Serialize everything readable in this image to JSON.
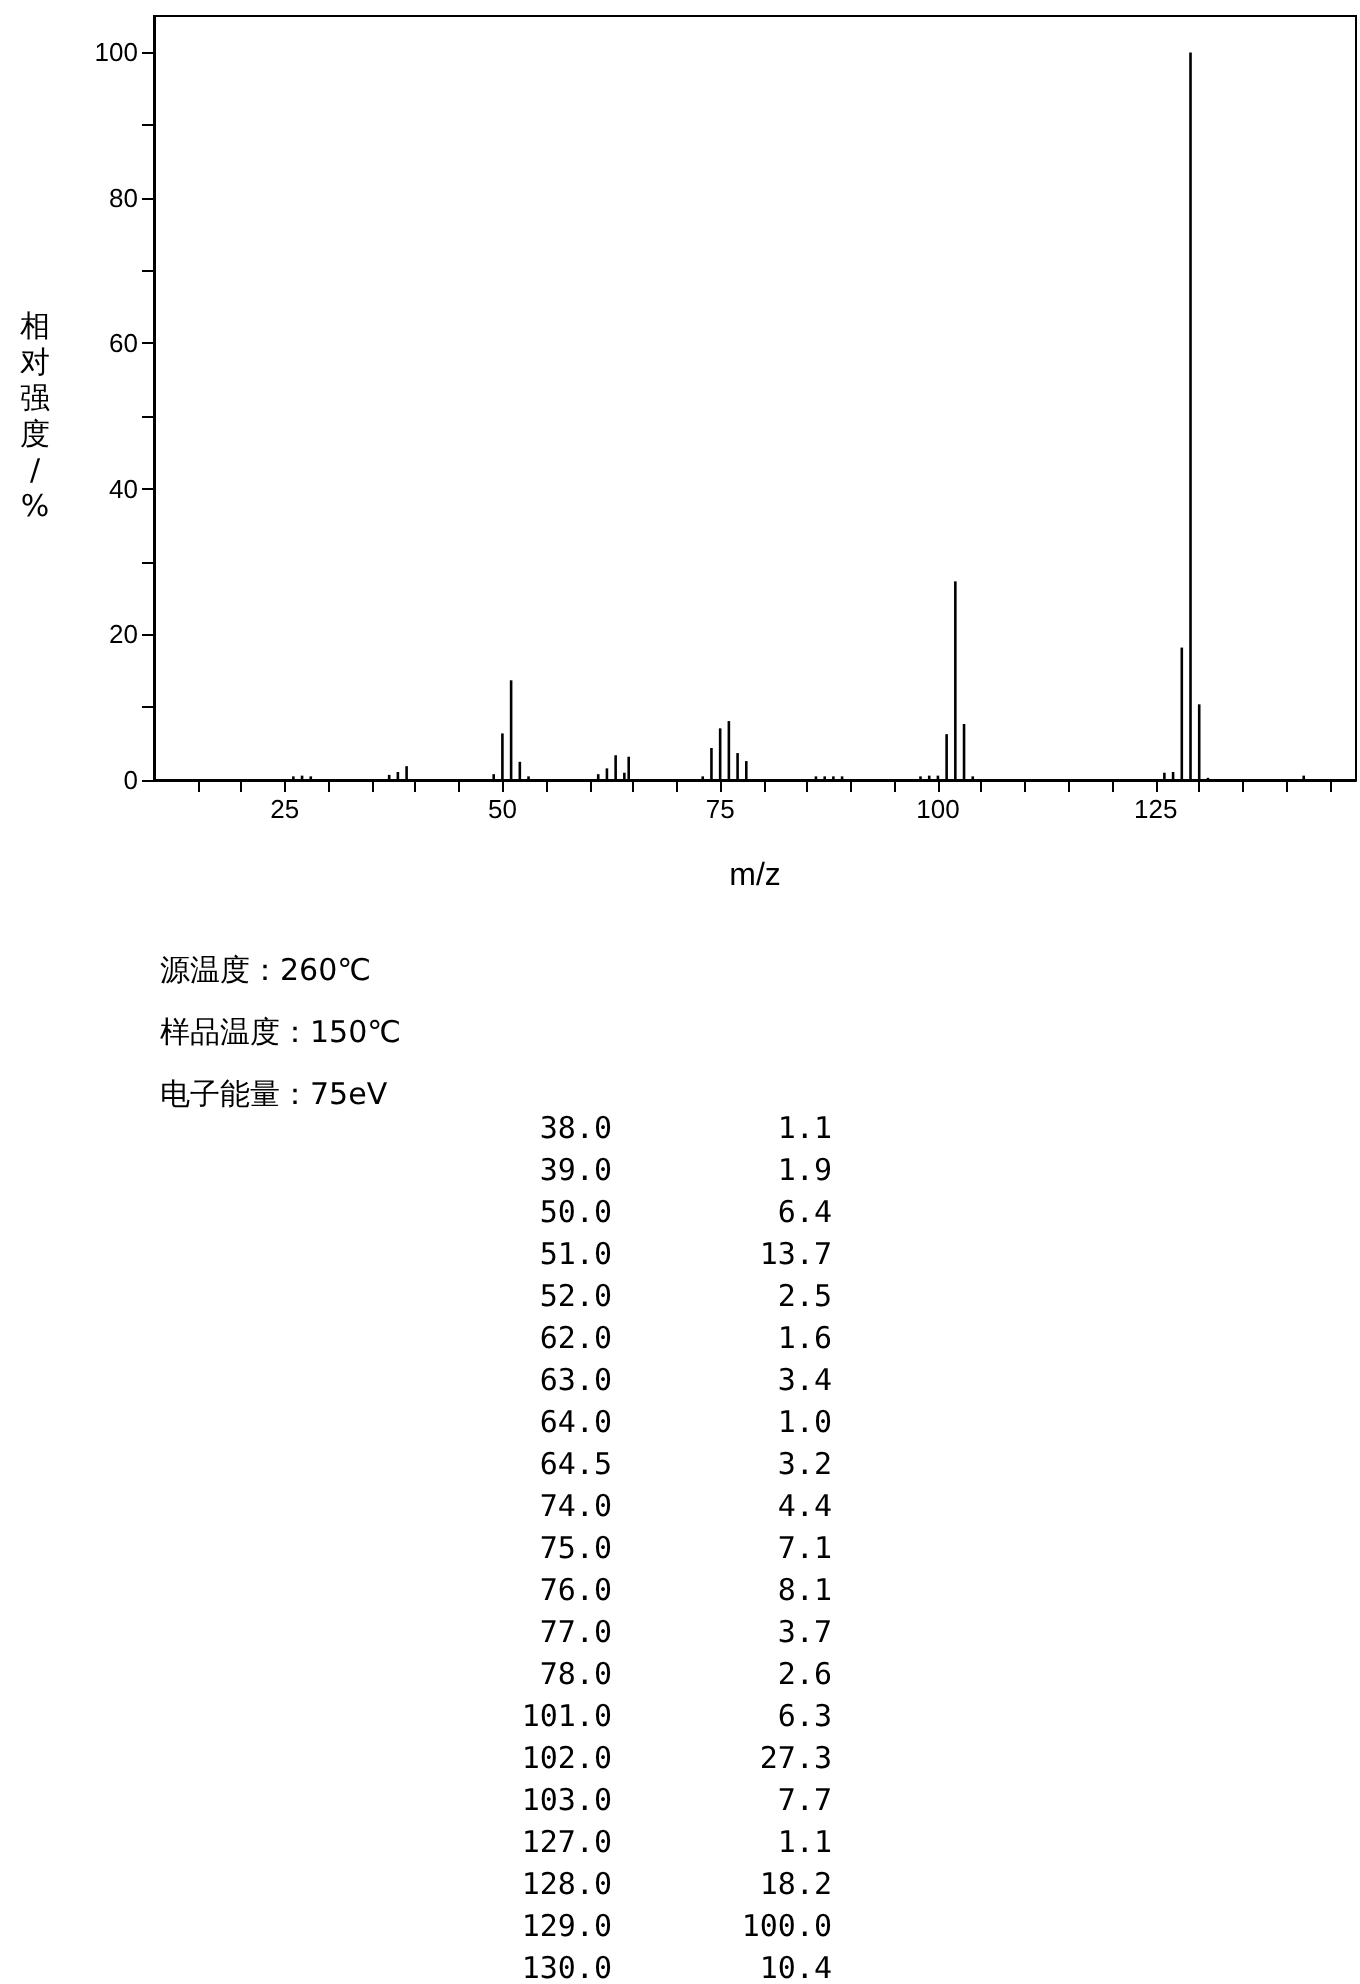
{
  "chart_data": {
    "type": "bar",
    "xlabel": "m/z",
    "ylabel": "相对强度/%",
    "x": [
      26,
      27,
      28,
      37,
      38,
      39,
      49,
      50,
      51,
      52,
      53,
      61,
      62,
      63,
      64,
      64.5,
      73,
      74,
      75,
      76,
      77,
      78,
      86,
      87,
      88,
      89,
      98,
      99,
      100,
      101,
      102,
      103,
      104,
      126,
      127,
      128,
      129,
      130,
      131,
      142
    ],
    "values": [
      0.5,
      0.6,
      0.5,
      0.7,
      1.1,
      1.9,
      0.8,
      6.4,
      13.7,
      2.5,
      0.5,
      0.8,
      1.6,
      3.4,
      1.0,
      3.2,
      0.5,
      4.4,
      7.1,
      8.1,
      3.7,
      2.6,
      0.5,
      0.5,
      0.5,
      0.5,
      0.5,
      0.6,
      0.6,
      6.3,
      27.3,
      7.7,
      0.5,
      1.0,
      1.1,
      18.2,
      100.0,
      10.4,
      0.3,
      0.6
    ],
    "color": "#000000",
    "xlim": [
      10,
      148
    ],
    "xticks": [
      {
        "value": 15,
        "label": null
      },
      {
        "value": 20,
        "label": null
      },
      25,
      {
        "value": 30,
        "label": null
      },
      {
        "value": 35,
        "label": null
      },
      {
        "value": 40,
        "label": null
      },
      {
        "value": 45,
        "label": null
      },
      50,
      {
        "value": 55,
        "label": null
      },
      {
        "value": 60,
        "label": null
      },
      {
        "value": 65,
        "label": null
      },
      {
        "value": 70,
        "label": null
      },
      75,
      {
        "value": 80,
        "label": null
      },
      {
        "value": 85,
        "label": null
      },
      {
        "value": 90,
        "label": null
      },
      {
        "value": 95,
        "label": null
      },
      100,
      {
        "value": 105,
        "label": null
      },
      {
        "value": 110,
        "label": null
      },
      {
        "value": 115,
        "label": null
      },
      {
        "value": 120,
        "label": null
      },
      125,
      {
        "value": 130,
        "label": null
      },
      {
        "value": 135,
        "label": null
      },
      {
        "value": 140,
        "label": null
      },
      {
        "value": 145,
        "label": null
      }
    ],
    "ylim": [
      0,
      105
    ],
    "yticks": [
      0,
      {
        "value": 10,
        "label": null
      },
      20,
      {
        "value": 30,
        "label": null
      },
      40,
      {
        "value": 50,
        "label": null
      },
      60,
      {
        "value": 70,
        "label": null
      },
      80,
      {
        "value": 90,
        "label": null
      },
      100
    ],
    "grid": false,
    "annotations": [
      "源温度：260℃",
      "样品温度：150℃",
      "电子能量：75eV",
      "38.0\t1.1",
      "39.0\t1.9",
      "50.0\t6.4",
      "51.0\t13.7",
      "52.0\t2.5",
      "62.0\t1.6",
      "63.0\t3.4",
      "64.0\t1.0",
      "64.5\t3.2",
      "74.0\t4.4",
      "75.0\t7.1",
      "76.0\t8.1",
      "77.0\t3.7",
      "78.0\t2.6",
      "101.0\t6.3",
      "102.0\t27.3",
      "103.0\t7.7",
      "127.0\t1.1",
      "128.0\t18.2",
      "129.0\t100.0",
      "130.0\t10.4"
    ]
  }
}
